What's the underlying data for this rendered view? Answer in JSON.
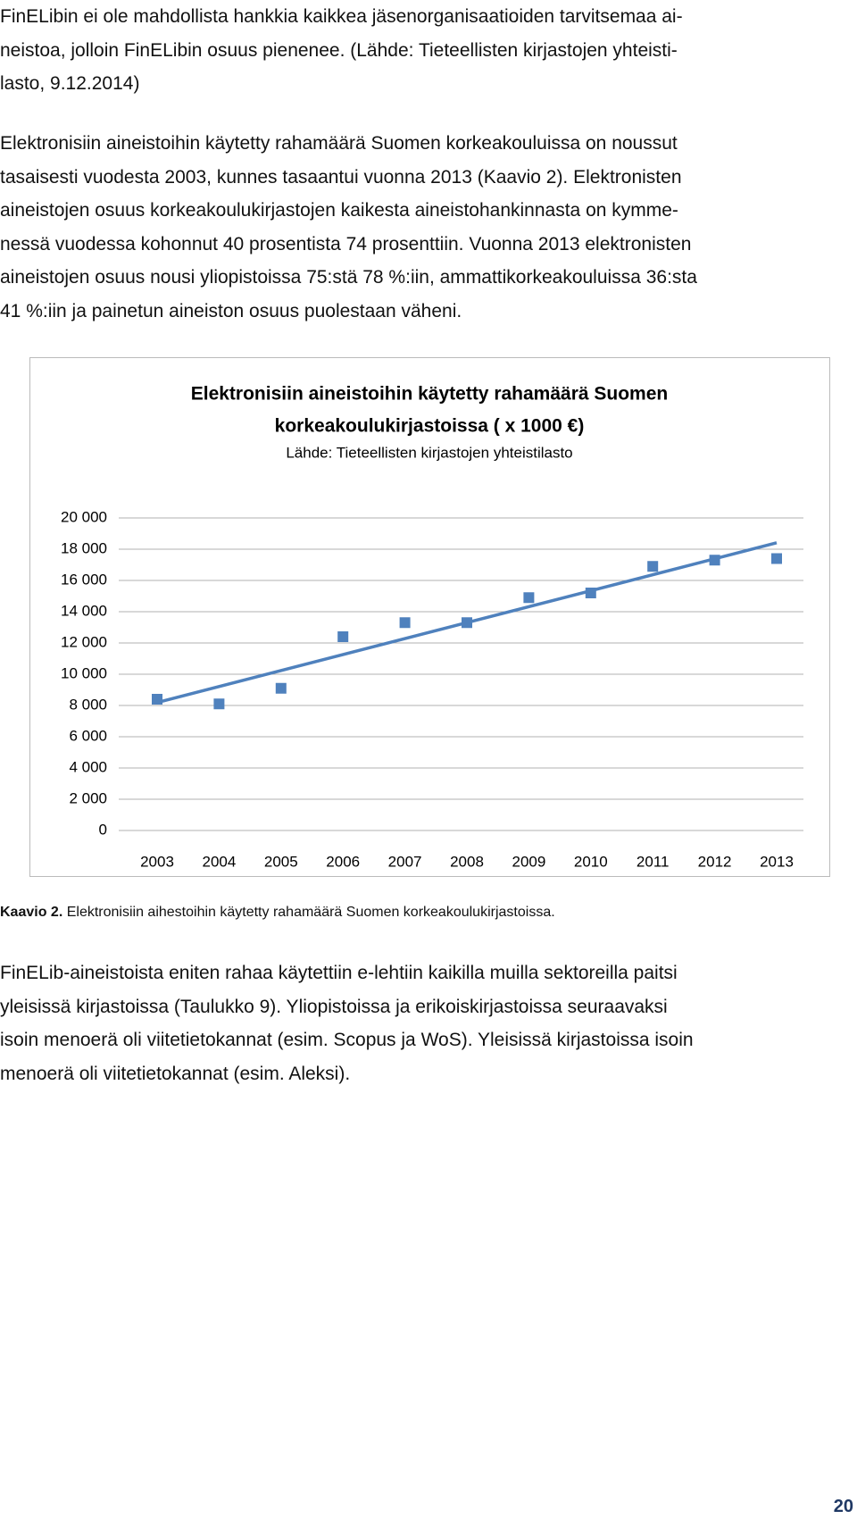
{
  "paragraphs": [
    [
      "FinELibin ei ole mahdollista hankkia kaikkea jäsenorganisaatioiden tarvitsemaa ai-",
      "neistoa, jolloin FinELibin osuus pienenee. (Lähde: Tieteellisten kirjastojen yhteisti-",
      "lasto, 9.12.2014)"
    ],
    [
      "Elektronisiin aineistoihin käytetty rahamäärä Suomen korkeakouluissa on noussut",
      "tasaisesti vuodesta 2003, kunnes tasaantui vuonna 2013 (Kaavio 2). Elektronisten",
      "aineistojen osuus korkeakoulukirjastojen kaikesta aineistohankinnasta on kymme-",
      "nessä vuodessa kohonnut 40 prosentista 74 prosenttiin. Vuonna 2013 elektronisten",
      "aineistojen osuus nousi yliopistoissa 75:stä 78 %:iin, ammattikorkeakouluissa 36:sta",
      "41 %:iin ja painetun aineiston osuus puolestaan väheni."
    ],
    [
      "FinELib-aineistoista eniten rahaa käytettiin e-lehtiin kaikilla muilla sektoreilla paitsi",
      "yleisissä kirjastoissa (Taulukko 9). Yliopistoissa ja erikoiskirjastoissa seuraavaksi",
      "isoin menoerä oli viitetietokannat (esim. Scopus ja WoS). Yleisissä kirjastoissa isoin",
      "menoerä oli viitetietokannat (esim. Aleksi)."
    ]
  ],
  "chart_data": {
    "type": "scatter",
    "title": [
      "Elektronisiin aineistoihin käytetty rahamäärä Suomen",
      "korkeakoulukirjastoissa ( x 1000 €)"
    ],
    "subtitle": "Lähde: Tieteellisten kirjastojen yhteistilasto",
    "categories": [
      "2003",
      "2004",
      "2005",
      "2006",
      "2007",
      "2008",
      "2009",
      "2010",
      "2011",
      "2012",
      "2013"
    ],
    "values": [
      8400,
      8100,
      9100,
      12400,
      13300,
      13300,
      14900,
      15200,
      16900,
      17300,
      17400
    ],
    "color": "#4f81bd",
    "trendline": true,
    "grid": true,
    "ylim": [
      0,
      20000
    ],
    "yticks": [
      0,
      {
        "value": 2000,
        "label": "2 000"
      },
      {
        "value": 4000,
        "label": "4 000"
      },
      {
        "value": 6000,
        "label": "6 000"
      },
      {
        "value": 8000,
        "label": "8 000"
      },
      {
        "value": 10000,
        "label": "10 000"
      },
      {
        "value": 12000,
        "label": "12 000"
      },
      {
        "value": 14000,
        "label": "14 000"
      },
      {
        "value": 16000,
        "label": "16 000"
      },
      {
        "value": 18000,
        "label": "18 000"
      },
      {
        "value": 20000,
        "label": "20 000"
      }
    ]
  },
  "caption": {
    "label": "Kaavio 2.",
    "text": "Elektronisiin aihestoihin käytetty rahamäärä Suomen korkeakoulukirjastoissa."
  },
  "page_number": "20"
}
